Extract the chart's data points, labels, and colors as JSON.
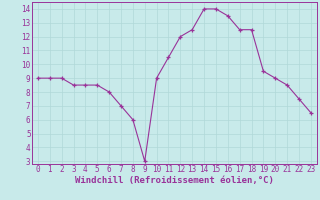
{
  "x": [
    0,
    1,
    2,
    3,
    4,
    5,
    6,
    7,
    8,
    9,
    10,
    11,
    12,
    13,
    14,
    15,
    16,
    17,
    18,
    19,
    20,
    21,
    22,
    23
  ],
  "y": [
    9,
    9,
    9,
    8.5,
    8.5,
    8.5,
    8,
    7,
    6,
    3,
    9,
    10.5,
    12,
    12.5,
    14,
    14,
    13.5,
    12.5,
    12.5,
    9.5,
    9,
    8.5,
    7.5,
    6.5
  ],
  "line_color": "#993399",
  "marker_color": "#993399",
  "bg_color": "#c8eaea",
  "grid_color": "#b0d8d8",
  "xlabel": "Windchill (Refroidissement éolien,°C)",
  "xlabel_color": "#993399",
  "ylim": [
    2.8,
    14.5
  ],
  "xlim": [
    -0.5,
    23.5
  ],
  "yticks": [
    3,
    4,
    5,
    6,
    7,
    8,
    9,
    10,
    11,
    12,
    13,
    14
  ],
  "xticks": [
    0,
    1,
    2,
    3,
    4,
    5,
    6,
    7,
    8,
    9,
    10,
    11,
    12,
    13,
    14,
    15,
    16,
    17,
    18,
    19,
    20,
    21,
    22,
    23
  ],
  "tick_color": "#993399",
  "tick_fontsize": 5.5,
  "xlabel_fontsize": 6.5
}
